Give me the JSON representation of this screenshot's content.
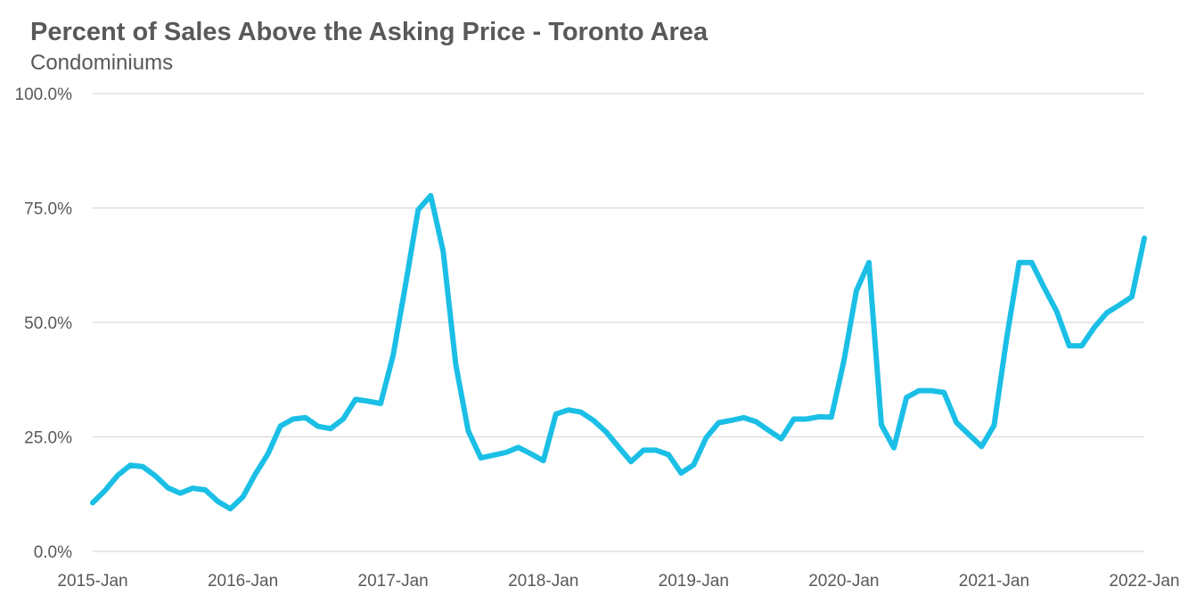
{
  "chart_data": {
    "type": "line",
    "title": "Percent of Sales Above the Asking Price - Toronto Area",
    "subtitle": "Condominiums",
    "xlabel": "",
    "ylabel": "",
    "ylim": [
      0,
      100
    ],
    "yticks": [
      "0.0%",
      "25.0%",
      "50.0%",
      "75.0%",
      "100.0%"
    ],
    "ytick_values": [
      0,
      25,
      50,
      75,
      100
    ],
    "xticks": [
      "2015-Jan",
      "2016-Jan",
      "2017-Jan",
      "2018-Jan",
      "2019-Jan",
      "2020-Jan",
      "2021-Jan",
      "2022-Jan"
    ],
    "grid": true,
    "legend": "none",
    "line_color": "#1bbfe6",
    "x_start": "2015-01",
    "x_end": "2022-01",
    "series": [
      {
        "values": [
          10.6,
          13.3,
          16.6,
          18.8,
          18.5,
          16.5,
          13.9,
          12.7,
          13.8,
          13.4,
          10.9,
          9.3,
          11.9,
          16.9,
          21.3,
          27.4,
          28.9,
          29.2,
          27.3,
          26.8,
          28.9,
          33.2,
          32.8,
          32.3,
          42.8,
          58.4,
          74.6,
          77.7,
          65.5,
          40.8,
          26.3,
          20.4,
          21.0,
          21.6,
          22.7,
          21.3,
          19.8,
          30.0,
          30.9,
          30.4,
          28.6,
          26.1,
          22.8,
          19.6,
          22.1,
          22.1,
          21.1,
          17.1,
          18.9,
          24.8,
          28.1,
          28.6,
          29.2,
          28.3,
          26.4,
          24.6,
          28.9,
          28.9,
          29.4,
          29.3,
          41.6,
          56.9,
          63.1,
          27.6,
          22.6,
          33.6,
          35.1,
          35.1,
          34.7,
          28.1,
          25.5,
          22.9,
          27.5,
          46.5,
          63.1,
          63.1,
          57.6,
          52.4,
          44.9,
          44.9,
          48.9,
          52.1,
          53.8,
          55.6,
          68.4
        ]
      }
    ]
  }
}
